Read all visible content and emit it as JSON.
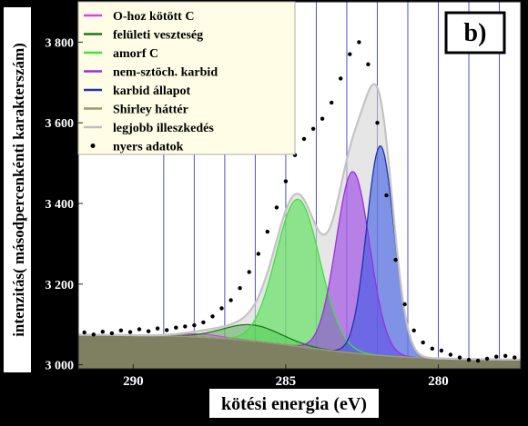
{
  "chart_data": {
    "type": "area",
    "panel_label": "b)",
    "xlabel": "kötési energia (eV)",
    "ylabel": "intenzitás( másodpercenkénti karakterszám)",
    "x_reversed": true,
    "xlim": [
      291.8,
      277.3
    ],
    "ylim": [
      2990,
      3900
    ],
    "x_ticks": [
      290,
      285,
      280
    ],
    "x_tick_labels": [
      "290",
      "285",
      "280"
    ],
    "y_ticks": [
      3000,
      3200,
      3400,
      3600,
      3800
    ],
    "y_tick_labels": [
      "3 000",
      "3 200",
      "3 400",
      "3 600",
      "3 800"
    ],
    "minor_gridlines_x": [
      289,
      288,
      287,
      286,
      285,
      284,
      283,
      282,
      281,
      280,
      279,
      278
    ],
    "grid": "vertical",
    "legend_position": "top-left",
    "legend": [
      {
        "label": "O-hoz kötött C",
        "color": "#e040e0",
        "marker": "line"
      },
      {
        "label": "felületi veszteség",
        "color": "#1a7a1a",
        "marker": "line"
      },
      {
        "label": "amorf C",
        "color": "#40e040",
        "marker": "line"
      },
      {
        "label": "nem-sztöch. karbid",
        "color": "#9b30d8",
        "marker": "line"
      },
      {
        "label": "karbid állapot",
        "color": "#2233aa",
        "marker": "line"
      },
      {
        "label": "Shirley háttér",
        "color": "#9a9a72",
        "marker": "line"
      },
      {
        "label": "legjobb illeszkedés",
        "color": "#c0c0c0",
        "marker": "line"
      },
      {
        "label": "nyers adatok",
        "color": "#000000",
        "marker": "dot"
      }
    ],
    "components": {
      "shirley": {
        "color": "#9a9a72",
        "fill": "#7f7f62",
        "high": 3075,
        "low": 3012,
        "center": 284.4,
        "width": 1.6
      },
      "peaks": [
        {
          "name": "O-hoz kötött C",
          "center": 287.8,
          "height": 8,
          "sigma": 0.7,
          "line": "#e040e0",
          "fill": "rgba(224,64,224,0.35)"
        },
        {
          "name": "felületi veszteség",
          "center": 286.1,
          "height": 40,
          "sigma": 0.95,
          "line": "#1a7a1a",
          "fill": "rgba(60,160,60,0.45)"
        },
        {
          "name": "amorf C",
          "center": 284.6,
          "height": 365,
          "sigma": 0.72,
          "line": "#40e040",
          "fill": "rgba(80,225,80,0.60)"
        },
        {
          "name": "nem-sztöch. karbid",
          "center": 282.8,
          "height": 450,
          "sigma": 0.55,
          "line": "#9b30d8",
          "fill": "rgba(150,60,230,0.60)"
        },
        {
          "name": "karbid állapot",
          "center": 281.9,
          "height": 520,
          "sigma": 0.45,
          "line": "#2233aa",
          "fill": "rgba(60,90,230,0.60)"
        }
      ],
      "best_fit": {
        "color": "#c4c4c4",
        "fill": "rgba(210,210,210,0.55)"
      }
    },
    "raw_data": {
      "x": [
        291.6,
        291.3,
        291.0,
        290.7,
        290.4,
        290.1,
        289.8,
        289.5,
        289.2,
        288.9,
        288.6,
        288.3,
        288.0,
        287.7,
        287.4,
        287.1,
        286.8,
        286.5,
        286.2,
        285.9,
        285.6,
        285.3,
        285.0,
        284.7,
        284.4,
        284.1,
        283.8,
        283.5,
        283.2,
        282.9,
        282.6,
        282.3,
        282.0,
        281.7,
        281.4,
        281.1,
        280.8,
        280.5,
        280.2,
        279.9,
        279.6,
        279.3,
        279.0,
        278.7,
        278.4,
        278.1,
        277.8,
        277.5
      ],
      "y": [
        3080,
        3075,
        3082,
        3078,
        3085,
        3081,
        3088,
        3083,
        3090,
        3086,
        3092,
        3095,
        3098,
        3105,
        3120,
        3140,
        3160,
        3190,
        3230,
        3275,
        3330,
        3390,
        3455,
        3520,
        3560,
        3585,
        3610,
        3650,
        3710,
        3770,
        3800,
        3745,
        3600,
        3420,
        3260,
        3150,
        3085,
        3055,
        3040,
        3035,
        3025,
        3018,
        3012,
        3010,
        3015,
        3020,
        3022,
        3018
      ]
    }
  }
}
